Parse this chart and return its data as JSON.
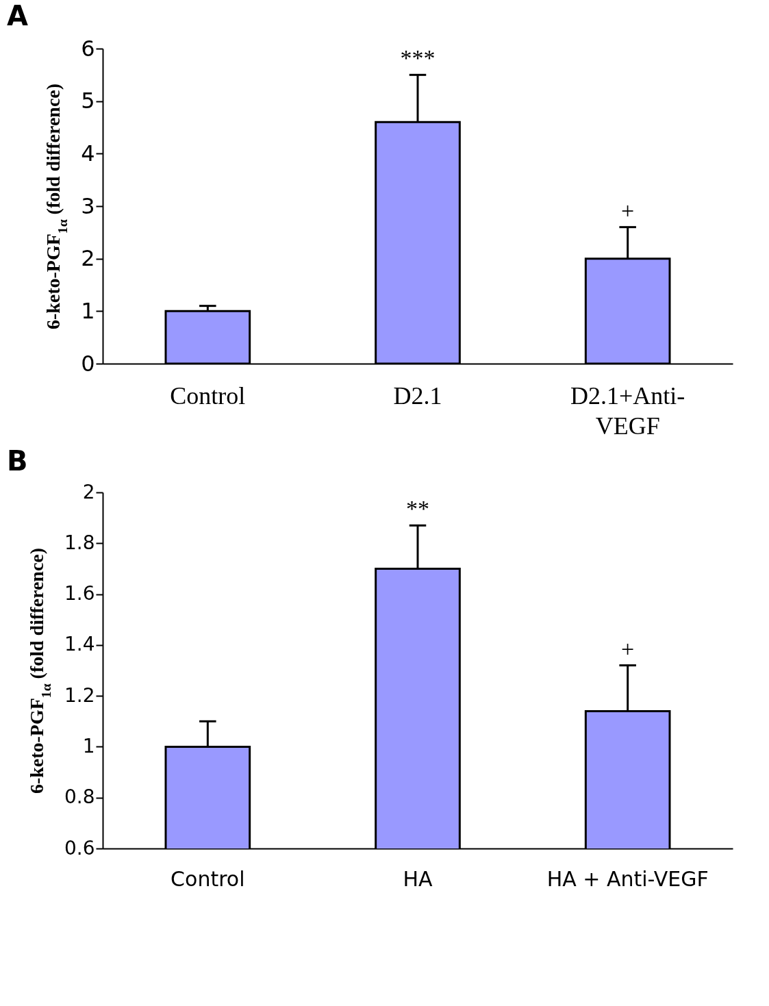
{
  "chart_data": [
    {
      "type": "bar",
      "title": "A",
      "ylabel": "6-keto-PGF$_{1α}$ (fold difference)",
      "categories": [
        "Control",
        "D2.1",
        "D2.1+Anti-VEGF"
      ],
      "values": [
        1,
        4.6,
        2.0
      ],
      "errors": [
        [
          1,
          1.1
        ],
        [
          4.6,
          5.5
        ],
        [
          2.0,
          2.6
        ]
      ],
      "color": "#9999ff",
      "ylim": [
        0,
        6
      ],
      "yticks": [
        0,
        1,
        2,
        3,
        4,
        5,
        6
      ],
      "grid": false,
      "annotations": [
        "***",
        "+"
      ]
    },
    {
      "type": "bar",
      "title": "B",
      "ylabel": "6-keto-PGF$_{1α}$ (fold difference)",
      "categories": [
        "Control",
        "HA",
        "HA + Anti-VEGF"
      ],
      "values": [
        1.0,
        1.7,
        1.14
      ],
      "errors": [
        [
          1.0,
          1.1
        ],
        [
          1.7,
          1.87
        ],
        [
          1.14,
          1.32
        ]
      ],
      "color": "#9999ff",
      "ylim": [
        0.6,
        2
      ],
      "yticks": [
        0.6,
        0.8,
        1,
        1.2,
        1.4,
        1.6,
        1.8,
        2
      ],
      "grid": false,
      "annotations": [
        "**",
        "+"
      ]
    }
  ]
}
